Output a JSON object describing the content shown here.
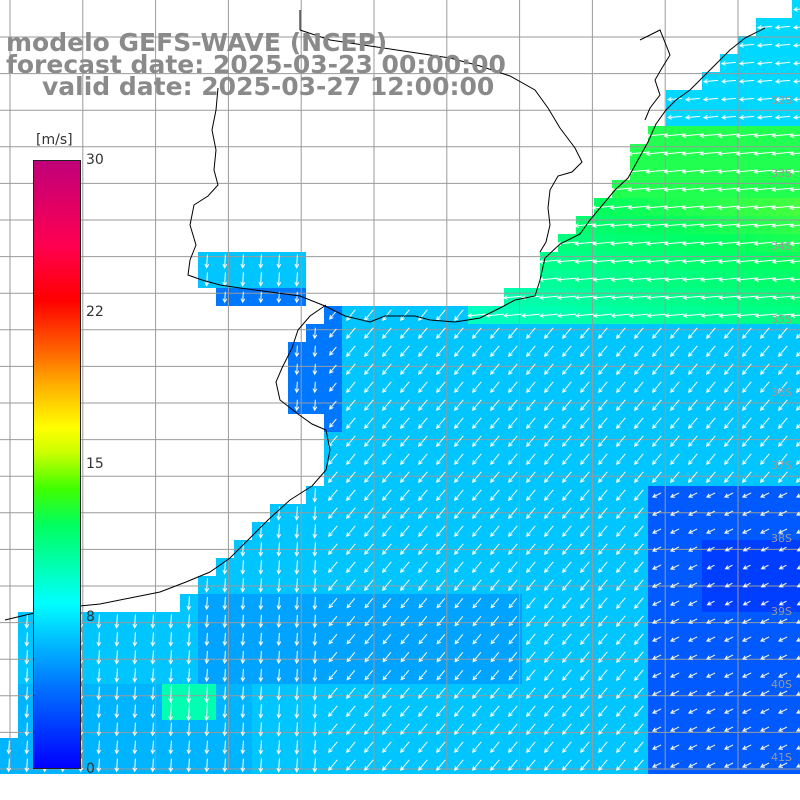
{
  "title": {
    "line1": "modelo GEFS-WAVE (NCEP)",
    "line2": "forecast date: 2025-03-23 00:00:00",
    "line3": "valid date: 2025-03-27 12:00:00"
  },
  "colorbar": {
    "unit": "[m/s]",
    "ticks": [
      "30",
      "22",
      "15",
      "8",
      "0"
    ],
    "min": 0,
    "max": 30
  },
  "latitude_labels": [
    "32S",
    "33S",
    "34S",
    "35S",
    "36S",
    "37S",
    "38S",
    "39S",
    "40S",
    "41S"
  ],
  "colors": {
    "background": "#ffffff",
    "land": "#ffffff",
    "grid": "#9a9a9a",
    "coast": "#000000",
    "arrows": "#ffffff",
    "title": "#8a8a8a"
  },
  "field": {
    "variable": "wind speed",
    "unit": "m/s",
    "general_direction": "from northeast",
    "range_approx": [
      2,
      13
    ]
  }
}
